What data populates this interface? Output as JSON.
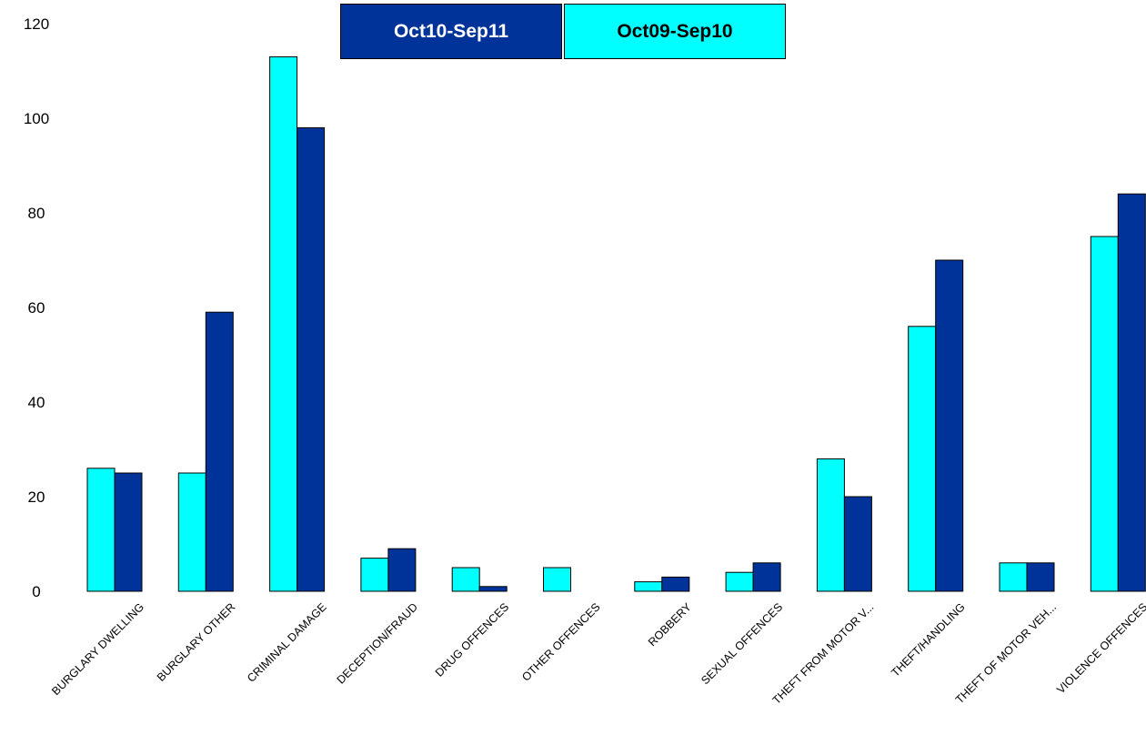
{
  "chart_data": {
    "type": "bar",
    "categories": [
      "BURGLARY DWELLING",
      "BURGLARY OTHER",
      "CRIMINAL DAMAGE",
      "DECEPTION/FRAUD",
      "DRUG OFFENCES",
      "OTHER OFFENCES",
      "ROBBERY",
      "SEXUAL OFFENCES",
      "THEFT FROM MOTOR V...",
      "THEFT/HANDLING",
      "THEFT OF MOTOR VEH...",
      "VIOLENCE OFFENCES"
    ],
    "series": [
      {
        "name": "Oct09-Sep10",
        "color": "#00ffff",
        "values": [
          26,
          25,
          113,
          7,
          5,
          5,
          2,
          4,
          28,
          56,
          6,
          75
        ]
      },
      {
        "name": "Oct10-Sep11",
        "color": "#003399",
        "values": [
          25,
          59,
          98,
          9,
          1,
          0,
          3,
          6,
          20,
          70,
          6,
          84
        ]
      }
    ],
    "ylim": [
      0,
      120
    ],
    "yticks": [
      0,
      20,
      40,
      60,
      80,
      100,
      120
    ],
    "grid": false,
    "legend": {
      "placement": "top-center",
      "items": [
        {
          "label": "Oct10-Sep11",
          "bg": "#003399",
          "fg": "#ffffff"
        },
        {
          "label": "Oct09-Sep10",
          "bg": "#00ffff",
          "fg": "#000000"
        }
      ]
    }
  }
}
